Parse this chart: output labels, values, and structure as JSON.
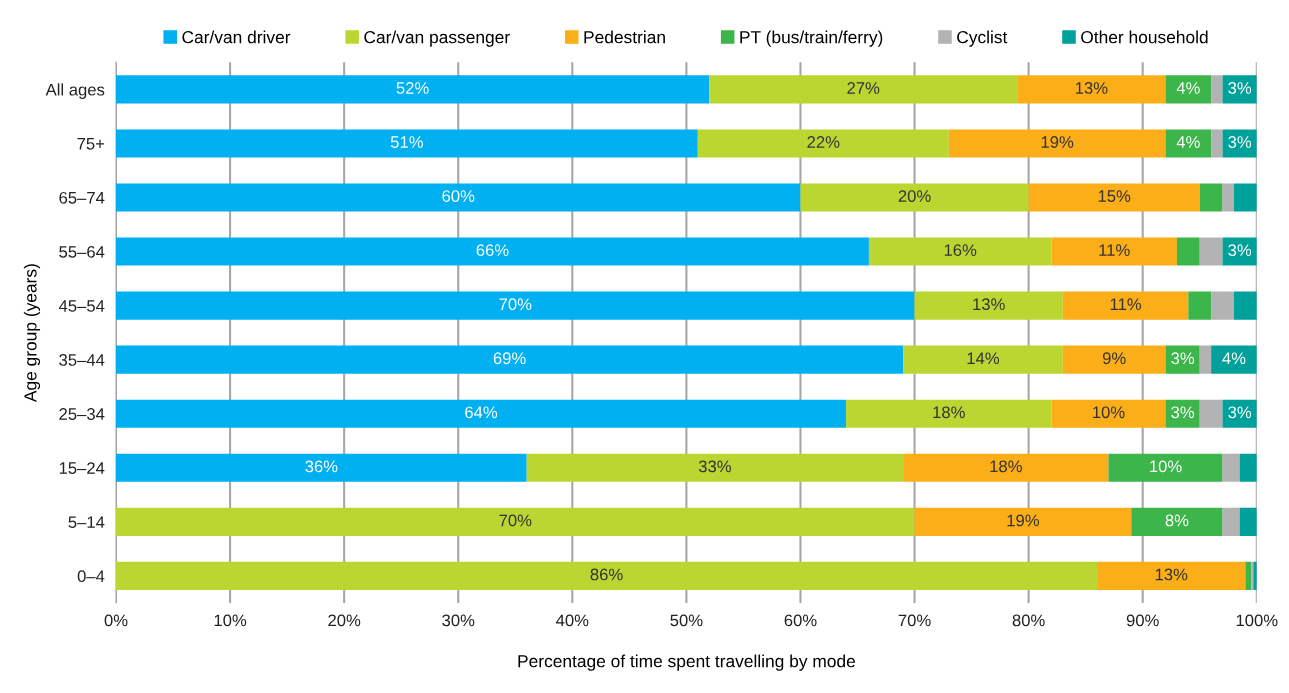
{
  "chart_data": {
    "type": "bar",
    "orientation": "horizontal",
    "stacked": true,
    "categories": [
      "All ages",
      "75+",
      "65–74",
      "55–64",
      "45–54",
      "35–44",
      "25–34",
      "15–24",
      "5–14",
      "0–4"
    ],
    "xlabel": "Percentage of time spent travelling by mode",
    "ylabel": "Age group (years)",
    "xlim": [
      0,
      100
    ],
    "xticks": [
      {
        "value": 0,
        "label": "0%"
      },
      {
        "value": 10,
        "label": "10%"
      },
      {
        "value": 20,
        "label": "20%"
      },
      {
        "value": 30,
        "label": "30%"
      },
      {
        "value": 40,
        "label": "40%"
      },
      {
        "value": 50,
        "label": "50%"
      },
      {
        "value": 60,
        "label": "60%"
      },
      {
        "value": 70,
        "label": "70%"
      },
      {
        "value": 80,
        "label": "80%"
      },
      {
        "value": 90,
        "label": "90%"
      },
      {
        "value": 100,
        "label": "100%"
      }
    ],
    "grid": "x",
    "legend": "top",
    "series": [
      {
        "name": "Car/van driver",
        "color": "#00b0f0",
        "values": [
          52,
          51,
          60,
          66,
          70,
          69,
          64,
          36,
          0,
          0
        ],
        "value_labels": [
          "52%",
          "51%",
          "60%",
          "66%",
          "70%",
          "69%",
          "64%",
          "36%",
          null,
          null
        ]
      },
      {
        "name": "Car/van passenger",
        "color": "#bcd631",
        "values": [
          27,
          22,
          20,
          16,
          13,
          14,
          18,
          33,
          70,
          86
        ],
        "value_labels": [
          "27%",
          "22%",
          "20%",
          "16%",
          "13%",
          "14%",
          "18%",
          "33%",
          "70%",
          "86%"
        ]
      },
      {
        "name": "Pedestrian",
        "color": "#fbae17",
        "values": [
          13,
          19,
          15,
          11,
          11,
          9,
          10,
          18,
          19,
          13
        ],
        "value_labels": [
          "13%",
          "19%",
          "15%",
          "11%",
          "11%",
          "9%",
          "10%",
          "18%",
          "19%",
          "13%"
        ]
      },
      {
        "name": "PT (bus/train/ferry)",
        "color": "#3cb54a",
        "values": [
          4,
          4,
          2,
          2,
          2,
          3,
          3,
          10,
          8,
          0.5
        ],
        "value_labels": [
          "4%",
          "4%",
          null,
          null,
          null,
          "3%",
          "3%",
          "10%",
          "8%",
          null
        ]
      },
      {
        "name": "Cyclist",
        "color": "#b3b3b3",
        "values": [
          1,
          1,
          1,
          2,
          2,
          1,
          2,
          1.5,
          1.5,
          0.2
        ],
        "value_labels": [
          null,
          null,
          null,
          null,
          null,
          null,
          null,
          null,
          null,
          null
        ]
      },
      {
        "name": "Other household",
        "color": "#00a19a",
        "values": [
          3,
          3,
          2,
          3,
          2,
          4,
          3,
          1.5,
          1.5,
          0.3
        ],
        "value_labels": [
          "3%",
          "3%",
          null,
          "3%",
          null,
          "4%",
          "3%",
          null,
          null,
          null
        ]
      }
    ]
  }
}
